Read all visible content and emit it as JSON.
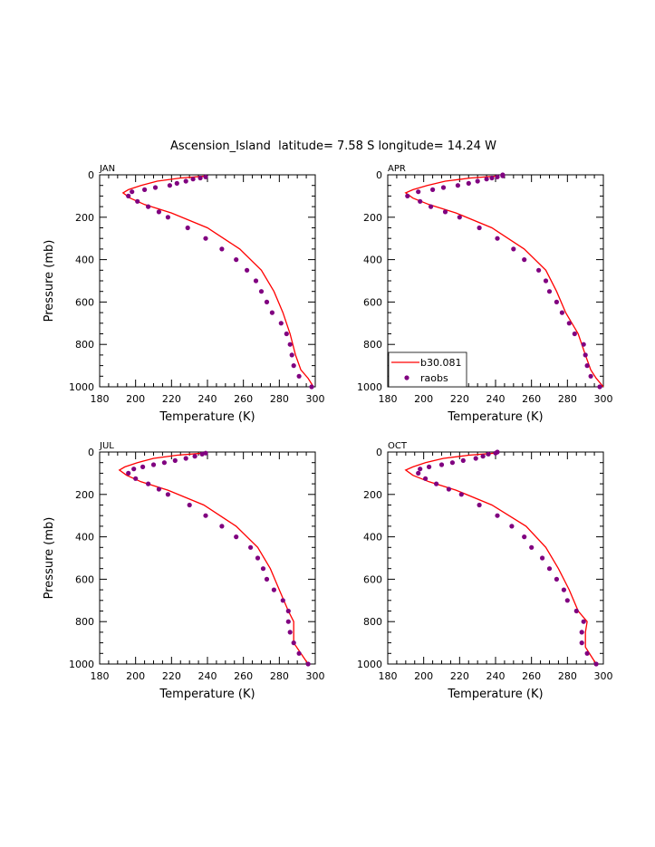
{
  "figure": {
    "title": "Ascension_Island  latitude= 7.58 S longitude= 14.24 W",
    "colors": {
      "model": "#ff0000",
      "obs": "#800080",
      "axis": "#000000"
    }
  },
  "chart_data": [
    {
      "type": "line",
      "panel": "JAN",
      "xlabel": "Temperature (K)",
      "ylabel": "Pressure (mb)",
      "xlim": [
        180,
        300
      ],
      "ylim": [
        1000,
        0
      ],
      "xticks": [
        180,
        200,
        220,
        240,
        260,
        280,
        300
      ],
      "yticks": [
        0,
        200,
        400,
        600,
        800,
        1000
      ],
      "legend": null,
      "series": [
        {
          "kind": "line",
          "points": [
            [
              240,
              5
            ],
            [
              225,
              15
            ],
            [
              212,
              30
            ],
            [
              203,
              50
            ],
            [
              196,
              70
            ],
            [
              193,
              85
            ],
            [
              197,
              110
            ],
            [
              205,
              140
            ],
            [
              220,
              180
            ],
            [
              240,
              250
            ],
            [
              258,
              350
            ],
            [
              270,
              450
            ],
            [
              277,
              550
            ],
            [
              282,
              650
            ],
            [
              286,
              750
            ],
            [
              289,
              850
            ],
            [
              292,
              920
            ],
            [
              296,
              960
            ],
            [
              299,
              1000
            ]
          ]
        },
        {
          "kind": "scatter",
          "points": [
            [
              239,
              10
            ],
            [
              236,
              15
            ],
            [
              232,
              20
            ],
            [
              228,
              30
            ],
            [
              223,
              40
            ],
            [
              219,
              50
            ],
            [
              211,
              60
            ],
            [
              205,
              70
            ],
            [
              198,
              80
            ],
            [
              196,
              100
            ],
            [
              201,
              125
            ],
            [
              207,
              150
            ],
            [
              213,
              175
            ],
            [
              218,
              200
            ],
            [
              229,
              250
            ],
            [
              239,
              300
            ],
            [
              248,
              350
            ],
            [
              256,
              400
            ],
            [
              262,
              450
            ],
            [
              267,
              500
            ],
            [
              270,
              550
            ],
            [
              273,
              600
            ],
            [
              276,
              650
            ],
            [
              281,
              700
            ],
            [
              284,
              750
            ],
            [
              286,
              800
            ],
            [
              287,
              850
            ],
            [
              288,
              900
            ],
            [
              291,
              950
            ],
            [
              298,
              1000
            ]
          ]
        }
      ]
    },
    {
      "type": "line",
      "panel": "APR",
      "xlabel": "Temperature (K)",
      "ylabel": "",
      "xlim": [
        180,
        300
      ],
      "ylim": [
        1000,
        0
      ],
      "xticks": [
        180,
        200,
        220,
        240,
        260,
        280,
        300
      ],
      "yticks": [
        0,
        200,
        400,
        600,
        800,
        1000
      ],
      "legend": {
        "position": "bottom-left",
        "entries": [
          {
            "label": "b30.081",
            "kind": "line"
          },
          {
            "label": "raobs",
            "kind": "scatter"
          }
        ]
      },
      "series": [
        {
          "kind": "line",
          "name": "b30.081",
          "points": [
            [
              242,
              5
            ],
            [
              226,
              15
            ],
            [
              212,
              30
            ],
            [
              202,
              50
            ],
            [
              194,
              70
            ],
            [
              190,
              85
            ],
            [
              194,
              110
            ],
            [
              203,
              140
            ],
            [
              218,
              180
            ],
            [
              238,
              250
            ],
            [
              256,
              350
            ],
            [
              268,
              450
            ],
            [
              274,
              550
            ],
            [
              279,
              650
            ],
            [
              286,
              750
            ],
            [
              290,
              850
            ],
            [
              293,
              920
            ],
            [
              296,
              960
            ],
            [
              300,
              1000
            ]
          ]
        },
        {
          "kind": "scatter",
          "name": "raobs",
          "points": [
            [
              244,
              0
            ],
            [
              244,
              5
            ],
            [
              241,
              10
            ],
            [
              238,
              15
            ],
            [
              235,
              20
            ],
            [
              230,
              30
            ],
            [
              225,
              40
            ],
            [
              219,
              50
            ],
            [
              211,
              60
            ],
            [
              205,
              70
            ],
            [
              197,
              80
            ],
            [
              191,
              100
            ],
            [
              198,
              125
            ],
            [
              204,
              150
            ],
            [
              212,
              175
            ],
            [
              220,
              200
            ],
            [
              231,
              250
            ],
            [
              241,
              300
            ],
            [
              250,
              350
            ],
            [
              256,
              400
            ],
            [
              264,
              450
            ],
            [
              268,
              500
            ],
            [
              270,
              550
            ],
            [
              274,
              600
            ],
            [
              277,
              650
            ],
            [
              281,
              700
            ],
            [
              284,
              750
            ],
            [
              289,
              800
            ],
            [
              290,
              850
            ],
            [
              291,
              900
            ],
            [
              293,
              950
            ],
            [
              298,
              1000
            ]
          ]
        }
      ]
    },
    {
      "type": "line",
      "panel": "JUL",
      "xlabel": "Temperature (K)",
      "ylabel": "Pressure (mb)",
      "xlim": [
        180,
        300
      ],
      "ylim": [
        1000,
        0
      ],
      "xticks": [
        180,
        200,
        220,
        240,
        260,
        280,
        300
      ],
      "yticks": [
        0,
        200,
        400,
        600,
        800,
        1000
      ],
      "legend": null,
      "series": [
        {
          "kind": "line",
          "points": [
            [
              238,
              5
            ],
            [
              223,
              15
            ],
            [
              210,
              30
            ],
            [
              201,
              50
            ],
            [
              194,
              70
            ],
            [
              191,
              85
            ],
            [
              195,
              110
            ],
            [
              203,
              140
            ],
            [
              218,
              180
            ],
            [
              238,
              250
            ],
            [
              256,
              350
            ],
            [
              268,
              450
            ],
            [
              275,
              550
            ],
            [
              280,
              650
            ],
            [
              285,
              750
            ],
            [
              288,
              800
            ],
            [
              288,
              900
            ],
            [
              292,
              950
            ],
            [
              296,
              1000
            ]
          ]
        },
        {
          "kind": "scatter",
          "points": [
            [
              239,
              5
            ],
            [
              237,
              10
            ],
            [
              233,
              20
            ],
            [
              228,
              30
            ],
            [
              222,
              40
            ],
            [
              216,
              50
            ],
            [
              210,
              60
            ],
            [
              204,
              70
            ],
            [
              199,
              80
            ],
            [
              196,
              100
            ],
            [
              200,
              125
            ],
            [
              207,
              150
            ],
            [
              213,
              175
            ],
            [
              218,
              200
            ],
            [
              230,
              250
            ],
            [
              239,
              300
            ],
            [
              248,
              350
            ],
            [
              256,
              400
            ],
            [
              264,
              450
            ],
            [
              268,
              500
            ],
            [
              271,
              550
            ],
            [
              273,
              600
            ],
            [
              277,
              650
            ],
            [
              282,
              700
            ],
            [
              285,
              750
            ],
            [
              285,
              800
            ],
            [
              286,
              850
            ],
            [
              288,
              900
            ],
            [
              291,
              950
            ],
            [
              296,
              1000
            ]
          ]
        }
      ]
    },
    {
      "type": "line",
      "panel": "OCT",
      "xlabel": "Temperature (K)",
      "ylabel": "",
      "xlim": [
        180,
        300
      ],
      "ylim": [
        1000,
        0
      ],
      "xticks": [
        180,
        200,
        220,
        240,
        260,
        280,
        300
      ],
      "yticks": [
        0,
        200,
        400,
        600,
        800,
        1000
      ],
      "legend": null,
      "series": [
        {
          "kind": "line",
          "points": [
            [
              240,
              5
            ],
            [
              225,
              15
            ],
            [
              211,
              30
            ],
            [
              201,
              50
            ],
            [
              194,
              70
            ],
            [
              190,
              85
            ],
            [
              194,
              110
            ],
            [
              203,
              140
            ],
            [
              218,
              180
            ],
            [
              238,
              250
            ],
            [
              257,
              350
            ],
            [
              268,
              450
            ],
            [
              275,
              550
            ],
            [
              281,
              650
            ],
            [
              286,
              750
            ],
            [
              291,
              800
            ],
            [
              290,
              850
            ],
            [
              290,
              920
            ],
            [
              293,
              960
            ],
            [
              296,
              1000
            ]
          ]
        },
        {
          "kind": "scatter",
          "points": [
            [
              241,
              0
            ],
            [
              240,
              5
            ],
            [
              236,
              10
            ],
            [
              233,
              20
            ],
            [
              229,
              30
            ],
            [
              222,
              40
            ],
            [
              216,
              50
            ],
            [
              210,
              60
            ],
            [
              203,
              70
            ],
            [
              198,
              80
            ],
            [
              197,
              100
            ],
            [
              201,
              125
            ],
            [
              207,
              150
            ],
            [
              214,
              175
            ],
            [
              221,
              200
            ],
            [
              231,
              250
            ],
            [
              241,
              300
            ],
            [
              249,
              350
            ],
            [
              256,
              400
            ],
            [
              260,
              450
            ],
            [
              266,
              500
            ],
            [
              270,
              550
            ],
            [
              274,
              600
            ],
            [
              278,
              650
            ],
            [
              280,
              700
            ],
            [
              285,
              750
            ],
            [
              289,
              800
            ],
            [
              288,
              850
            ],
            [
              288,
              900
            ],
            [
              291,
              950
            ],
            [
              296,
              1000
            ]
          ]
        }
      ]
    }
  ]
}
